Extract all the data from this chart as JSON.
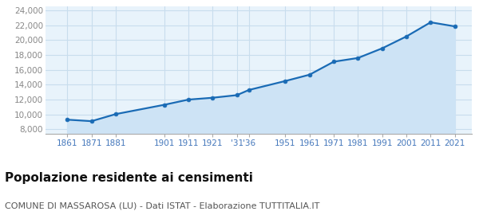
{
  "years": [
    1861,
    1871,
    1881,
    1901,
    1911,
    1921,
    1931,
    1936,
    1951,
    1961,
    1971,
    1981,
    1991,
    2001,
    2011,
    2021
  ],
  "population": [
    9300,
    9100,
    10050,
    11300,
    12000,
    12250,
    12600,
    13300,
    14500,
    15350,
    17100,
    17600,
    18900,
    20500,
    22400,
    21850
  ],
  "xtick_positions": [
    1861,
    1871,
    1881,
    1901,
    1911,
    1921,
    1931,
    1936,
    1951,
    1961,
    1971,
    1981,
    1991,
    2001,
    2011,
    2021
  ],
  "xtick_labels": [
    "1861",
    "1871",
    "1881",
    "1901",
    "1911",
    "1921",
    "'31",
    "'36",
    "1951",
    "1961",
    "1971",
    "1981",
    "1991",
    "2001",
    "2011",
    "2021"
  ],
  "yticks": [
    8000,
    10000,
    12000,
    14000,
    16000,
    18000,
    20000,
    22000,
    24000
  ],
  "ylim": [
    7400,
    24500
  ],
  "xlim": [
    1852,
    2028
  ],
  "line_color": "#1a6bb5",
  "marker_color": "#1a6bb5",
  "fill_color": "#cde3f5",
  "grid_color": "#c8dded",
  "background_color": "#e8f3fb",
  "title": "Popolazione residente ai censimenti",
  "subtitle": "COMUNE DI MASSAROSA (LU) - Dati ISTAT - Elaborazione TUTTITALIA.IT",
  "title_fontsize": 11,
  "subtitle_fontsize": 8,
  "tick_label_color": "#4477bb",
  "tick_label_fontsize": 7.5,
  "ytick_label_color": "#888888"
}
